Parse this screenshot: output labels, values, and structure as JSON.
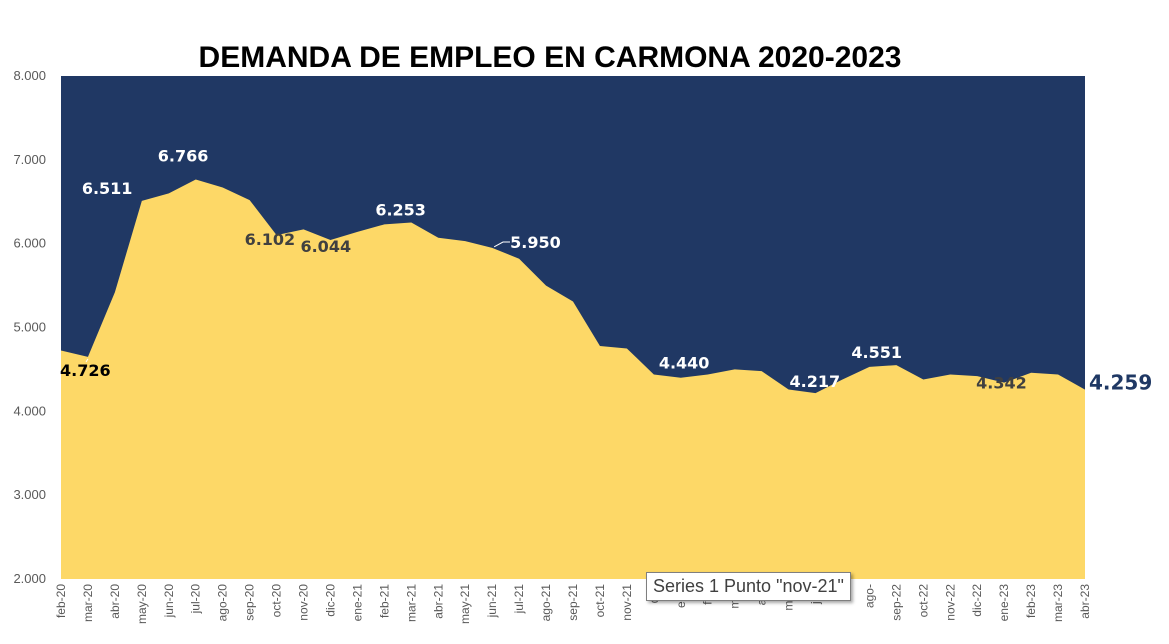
{
  "chart_data": {
    "type": "area",
    "title": "DEMANDA DE EMPLEO EN CARMONA 2020-2023",
    "xlabel": "",
    "ylabel": "",
    "ylim": [
      2000,
      8000
    ],
    "yticks": [
      2000,
      3000,
      4000,
      5000,
      6000,
      7000,
      8000
    ],
    "ytick_labels": [
      "2.000",
      "3.000",
      "4.000",
      "5.000",
      "6.000",
      "7.000",
      "8.000"
    ],
    "categories": [
      "feb-20",
      "mar-20",
      "abr-20",
      "may-20",
      "jun-20",
      "jul-20",
      "ago-20",
      "sep-20",
      "oct-20",
      "nov-20",
      "dic-20",
      "ene-21",
      "feb-21",
      "mar-21",
      "abr-21",
      "may-21",
      "jun-21",
      "jul-21",
      "ago-21",
      "sep-21",
      "oct-21",
      "nov-21",
      "dic-21",
      "ene-22",
      "feb-22",
      "mar-22",
      "abr-22",
      "may-22",
      "jun-22",
      "jul-22",
      "ago-22",
      "sep-22",
      "oct-22",
      "nov-22",
      "dic-22",
      "ene-23",
      "feb-23",
      "mar-23",
      "abr-23"
    ],
    "x_tick_labels": [
      "feb-20",
      "mar-20",
      "abr-20",
      "may-20",
      "jun-20",
      "jul-20",
      "ago-20",
      "sep-20",
      "oct-20",
      "nov-20",
      "dic-20",
      "ene-21",
      "feb-21",
      "mar-21",
      "abr-21",
      "may-21",
      "jun-21",
      "jul-21",
      "ago-21",
      "sep-21",
      "oct-21",
      "nov-21",
      "dic-",
      "ene-",
      "feb-",
      "mar-",
      "abr-",
      "may-",
      "jun-",
      "jul-",
      "ago-",
      "sep-22",
      "oct-22",
      "nov-22",
      "dic-22",
      "ene-23",
      "feb-23",
      "mar-23",
      "abr-23"
    ],
    "series": [
      {
        "values": [
          4726,
          4650,
          5420,
          6511,
          6600,
          6766,
          6670,
          6520,
          6102,
          6170,
          6044,
          6140,
          6230,
          6253,
          6070,
          6030,
          5950,
          5820,
          5500,
          5310,
          4780,
          4750,
          4440,
          4400,
          4440,
          4500,
          4480,
          4260,
          4217,
          4380,
          4530,
          4551,
          4380,
          4440,
          4420,
          4342,
          4460,
          4440,
          4259
        ]
      }
    ],
    "data_labels": [
      {
        "index": 0,
        "text": "4.726",
        "color": "#000000"
      },
      {
        "index": 3,
        "text": "6.511",
        "color": "#ffffff"
      },
      {
        "index": 5,
        "text": "6.766",
        "color": "#ffffff"
      },
      {
        "index": 8,
        "text": "6.102",
        "color": "#404040"
      },
      {
        "index": 10,
        "text": "6.044",
        "color": "#404040"
      },
      {
        "index": 13,
        "text": "6.253",
        "color": "#ffffff"
      },
      {
        "index": 16,
        "text": "5.950",
        "color": "#ffffff"
      },
      {
        "index": 22,
        "text": "4.440",
        "color": "#ffffff"
      },
      {
        "index": 28,
        "text": "4.217",
        "color": "#ffffff"
      },
      {
        "index": 31,
        "text": "4.551",
        "color": "#ffffff"
      },
      {
        "index": 35,
        "text": "4.342",
        "color": "#404040"
      },
      {
        "index": 38,
        "text": "4.259",
        "color": "#1f3864"
      }
    ],
    "colors": {
      "area": "#fdd867",
      "background": "#203864",
      "tick_text": "#595959"
    },
    "legend": "none",
    "grid": false
  },
  "tooltip": {
    "text": "Series 1 Punto \"nov-21\""
  }
}
